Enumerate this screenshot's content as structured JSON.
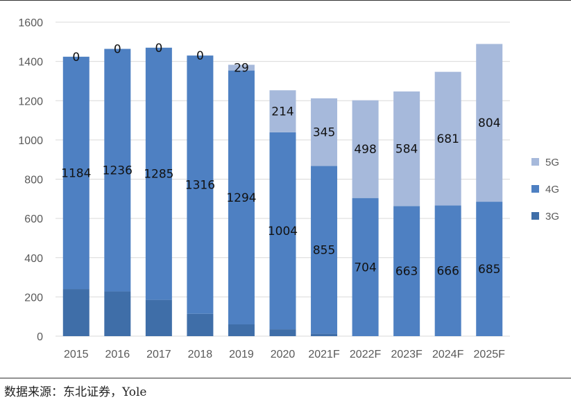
{
  "chart_data": {
    "type": "bar",
    "stacked": true,
    "categories": [
      "2015",
      "2016",
      "2017",
      "2018",
      "2019",
      "2020",
      "2021F",
      "2022F",
      "2023F",
      "2024F",
      "2025F"
    ],
    "series": [
      {
        "name": "3G",
        "color": "#3f6ea8",
        "values": [
          240,
          228,
          185,
          114,
          60,
          35,
          12,
          0,
          0,
          0,
          0
        ],
        "labels": null
      },
      {
        "name": "4G",
        "color": "#4e80c2",
        "values": [
          1184,
          1236,
          1285,
          1316,
          1294,
          1004,
          855,
          704,
          663,
          666,
          685
        ],
        "labels": [
          "1184",
          "1236",
          "1285",
          "1316",
          "1294",
          "1004",
          "855",
          "704",
          "663",
          "666",
          "685"
        ]
      },
      {
        "name": "5G",
        "color": "#a6b9db",
        "values": [
          0,
          0,
          0,
          0,
          29,
          214,
          345,
          498,
          584,
          681,
          804
        ],
        "labels": [
          "0",
          "0",
          "0",
          "0",
          "29",
          "214",
          "345",
          "498",
          "584",
          "681",
          "804"
        ]
      }
    ],
    "ylim": [
      0,
      1600
    ],
    "yticks": [
      0,
      200,
      400,
      600,
      800,
      1000,
      1200,
      1400,
      1600
    ],
    "grid": true,
    "legend_position": "right",
    "title": "",
    "xlabel": "",
    "ylabel": ""
  },
  "source_text": "数据来源：东北证券，Yole"
}
